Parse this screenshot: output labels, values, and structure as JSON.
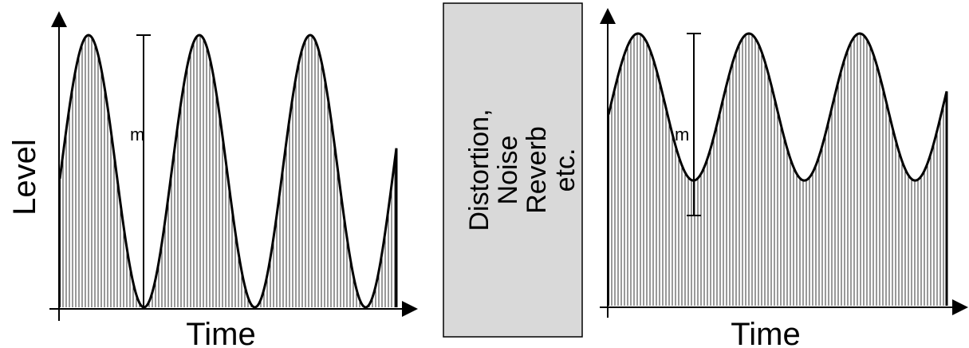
{
  "left_panel": {
    "y_axis_label": "Level",
    "x_axis_label": "Time",
    "modulation_label": "m",
    "signal": {
      "description_visible": false,
      "baseline": 0.0,
      "peak": 1.0,
      "cycles": 3.2
    }
  },
  "middle_box": {
    "lines": [
      "Distortion,",
      "Noise",
      "Reverb",
      "etc."
    ]
  },
  "right_panel": {
    "x_axis_label": "Time",
    "modulation_label": "m",
    "signal": {
      "baseline": 0.46,
      "peak": 1.0,
      "cycles": 3.2
    }
  },
  "colors": {
    "stroke": "#000000",
    "box_fill": "#d9d9d9",
    "background": "#ffffff"
  }
}
